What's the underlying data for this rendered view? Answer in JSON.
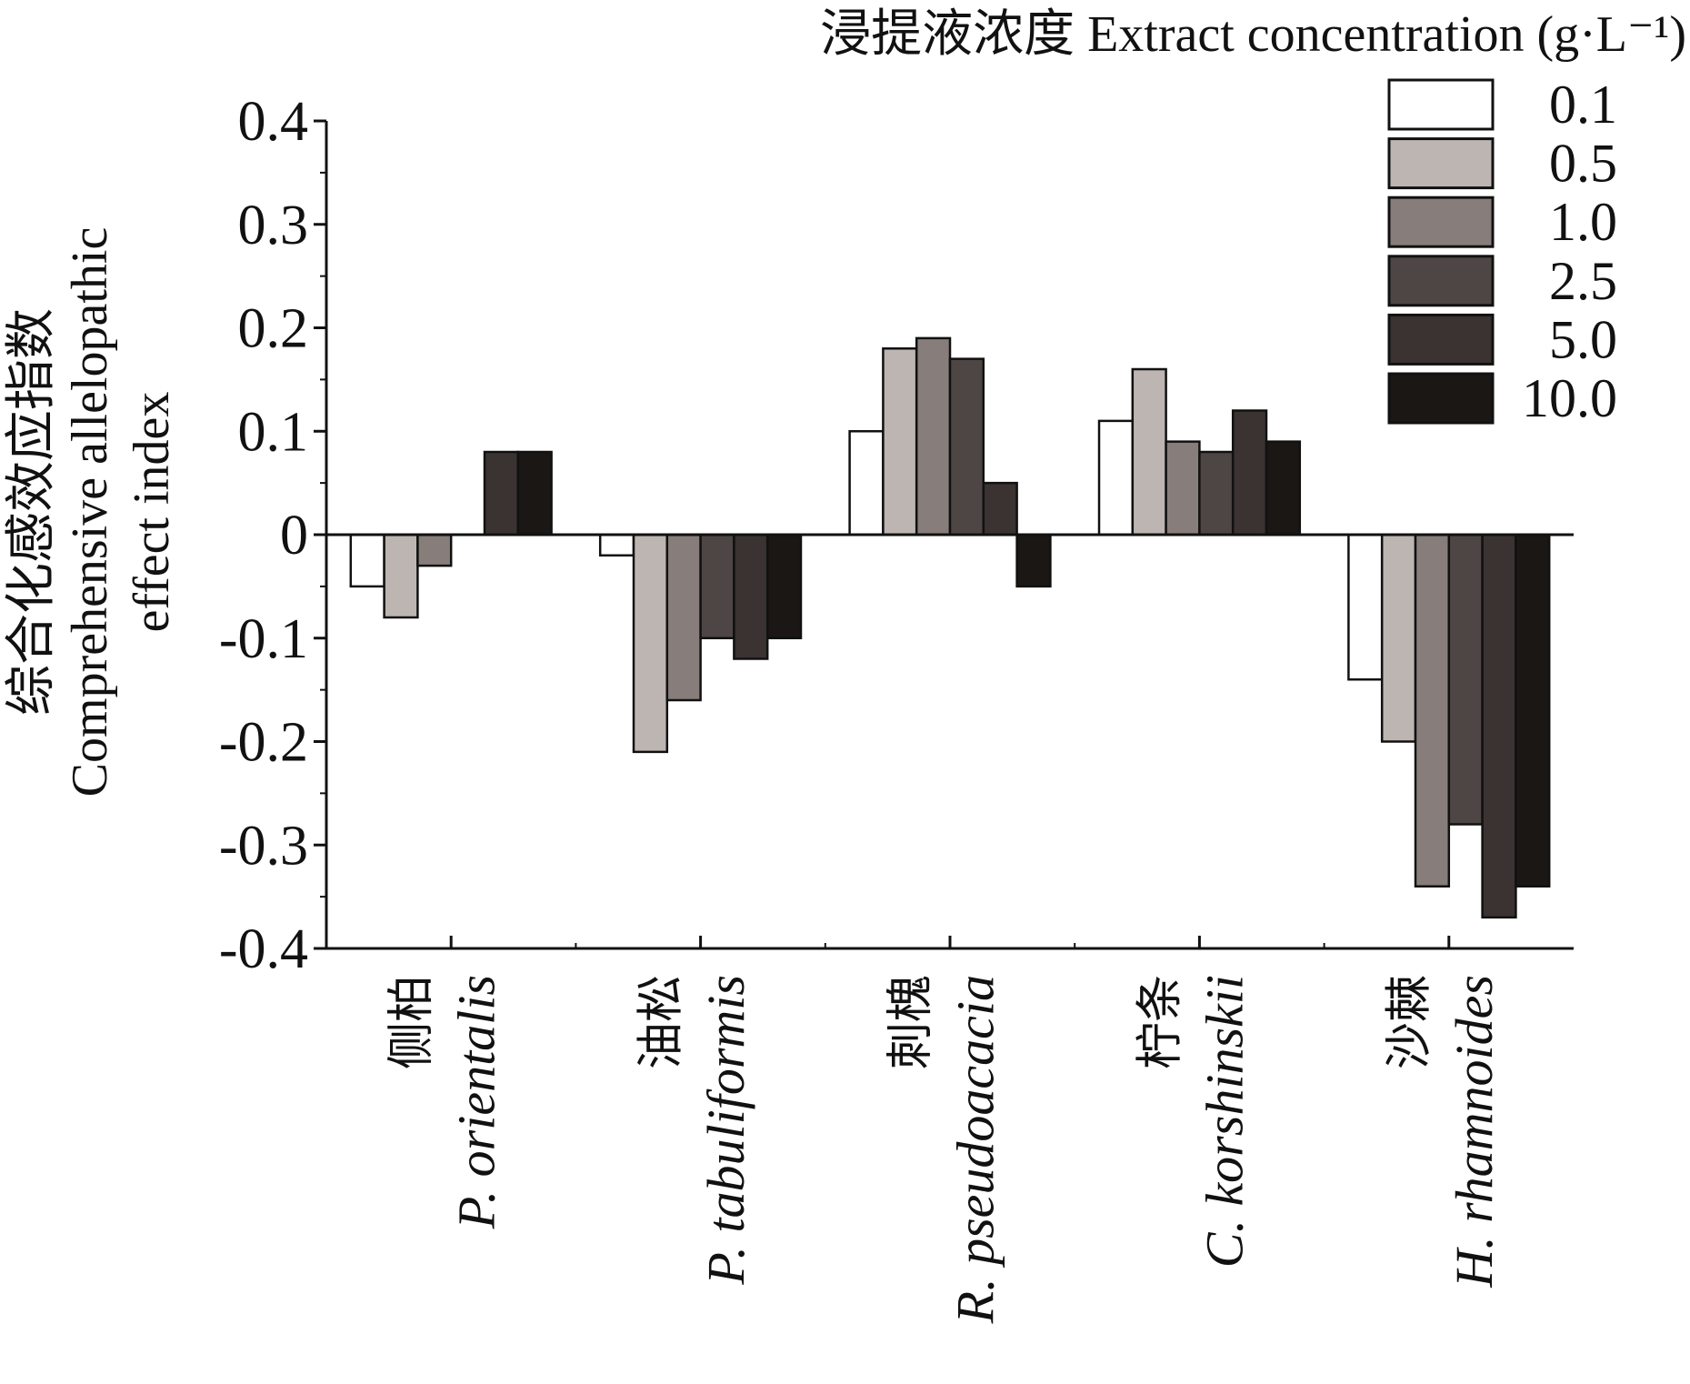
{
  "chart_data": {
    "type": "bar",
    "title": "",
    "legend_title": "浸提液浓度 Extract concentration (g·L⁻¹)",
    "legend_placement": "top-right",
    "ylabel_lines": [
      "综合化感效应指数",
      "Comprehensive allelopathic",
      "effect index"
    ],
    "xlabel": "",
    "ylim": [
      -0.4,
      0.4
    ],
    "yticks": [
      0.4,
      0.3,
      0.2,
      0.1,
      0,
      -0.1,
      -0.2,
      -0.3,
      -0.4
    ],
    "ytick_labels": [
      "0.4",
      "0.3",
      "0.2",
      "0.1",
      "0",
      "-0.1",
      "-0.2",
      "-0.3",
      "-0.4"
    ],
    "categories": [
      {
        "cn": "侧柏",
        "latin": "P. orientalis"
      },
      {
        "cn": "油松",
        "latin": "P. tabuliformis"
      },
      {
        "cn": "刺槐",
        "latin": "R. pseudoacacia"
      },
      {
        "cn": "柠条",
        "latin": "C. korshinskii"
      },
      {
        "cn": "沙棘",
        "latin": "H. rhamnoides"
      }
    ],
    "series": [
      {
        "name": "0.1",
        "color": "#ffffff",
        "values": [
          -0.05,
          -0.02,
          0.1,
          0.11,
          -0.14
        ]
      },
      {
        "name": "0.5",
        "color": "#bdb5b2",
        "values": [
          -0.08,
          -0.21,
          0.18,
          0.16,
          -0.2
        ]
      },
      {
        "name": "1.0",
        "color": "#877d7a",
        "values": [
          -0.03,
          -0.16,
          0.19,
          0.09,
          -0.34
        ]
      },
      {
        "name": "2.5",
        "color": "#4d4644",
        "values": [
          0,
          -0.1,
          0.17,
          0.08,
          -0.28
        ]
      },
      {
        "name": "5.0",
        "color": "#3a3332",
        "values": [
          0.08,
          -0.12,
          0.05,
          0.12,
          -0.37
        ]
      },
      {
        "name": "10.0",
        "color": "#1a1714",
        "values": [
          0.08,
          -0.1,
          -0.05,
          0.09,
          -0.34
        ]
      }
    ],
    "grid": false
  }
}
